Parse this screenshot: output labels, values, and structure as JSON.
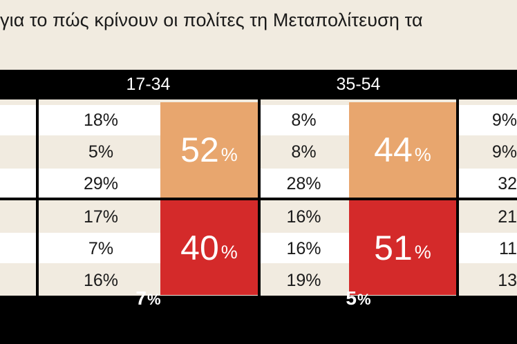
{
  "title": "για το πώς κρίνουν οι πολίτες τη Μεταπολίτευση τα",
  "chart_data": {
    "type": "table",
    "groups": [
      "17-34",
      "35-54",
      ""
    ],
    "rows": [
      [
        "18%",
        "8%",
        "9%"
      ],
      [
        "5%",
        "8%",
        "9%"
      ],
      [
        "29%",
        "28%",
        "32"
      ],
      [
        "17%",
        "16%",
        "21"
      ],
      [
        "7%",
        "16%",
        "11"
      ],
      [
        "16%",
        "19%",
        "13"
      ]
    ],
    "totals_top": [
      {
        "value": "52",
        "unit": "%"
      },
      {
        "value": "44",
        "unit": "%"
      }
    ],
    "totals_bottom": [
      {
        "value": "40",
        "unit": "%"
      },
      {
        "value": "51",
        "unit": "%"
      }
    ],
    "footer": [
      {
        "value": "7",
        "unit": "%"
      },
      {
        "value": "5",
        "unit": "%"
      }
    ],
    "colors": {
      "positive": "#e8a66e",
      "negative": "#d42a2a",
      "header": "#000000",
      "background": "#f1ebe0"
    }
  }
}
